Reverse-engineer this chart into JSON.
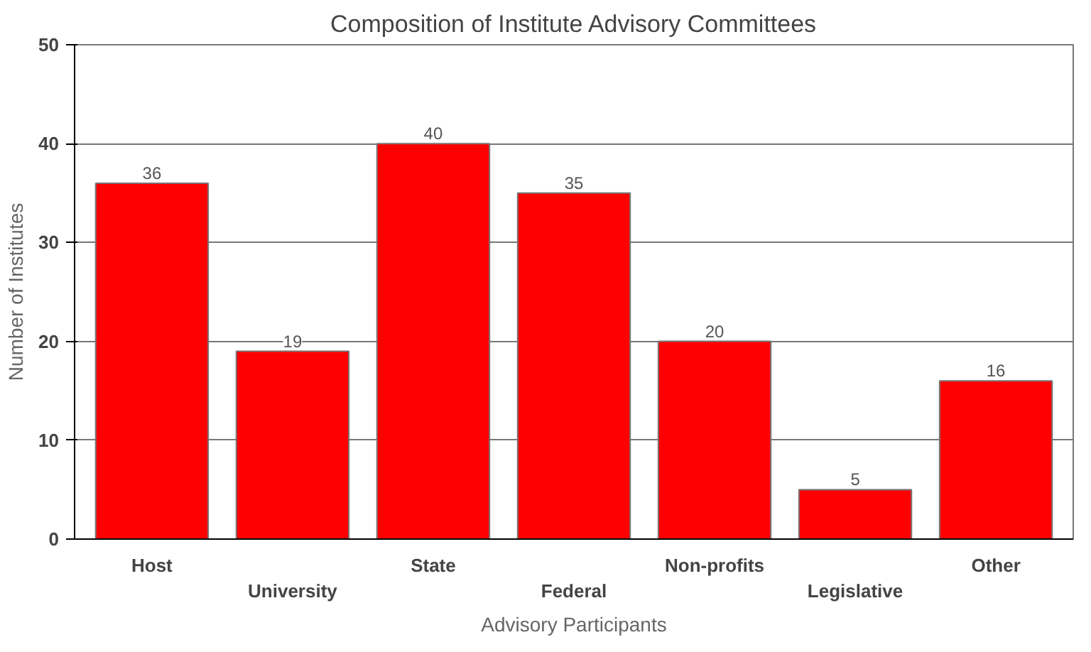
{
  "chart_data": {
    "type": "bar",
    "title": "Composition of Institute Advisory Committees",
    "xlabel": "Advisory Participants",
    "ylabel": "Number of Institutes",
    "categories": [
      "Host",
      "University",
      "State",
      "Federal",
      "Non-profits",
      "Legislative",
      "Other"
    ],
    "values": [
      36,
      19,
      40,
      35,
      20,
      5,
      16
    ],
    "color": "#ff0000",
    "data_labels": true,
    "ylim": [
      0,
      50
    ],
    "yticks": [
      0,
      10,
      20,
      30,
      40,
      50
    ],
    "grid": "y"
  }
}
